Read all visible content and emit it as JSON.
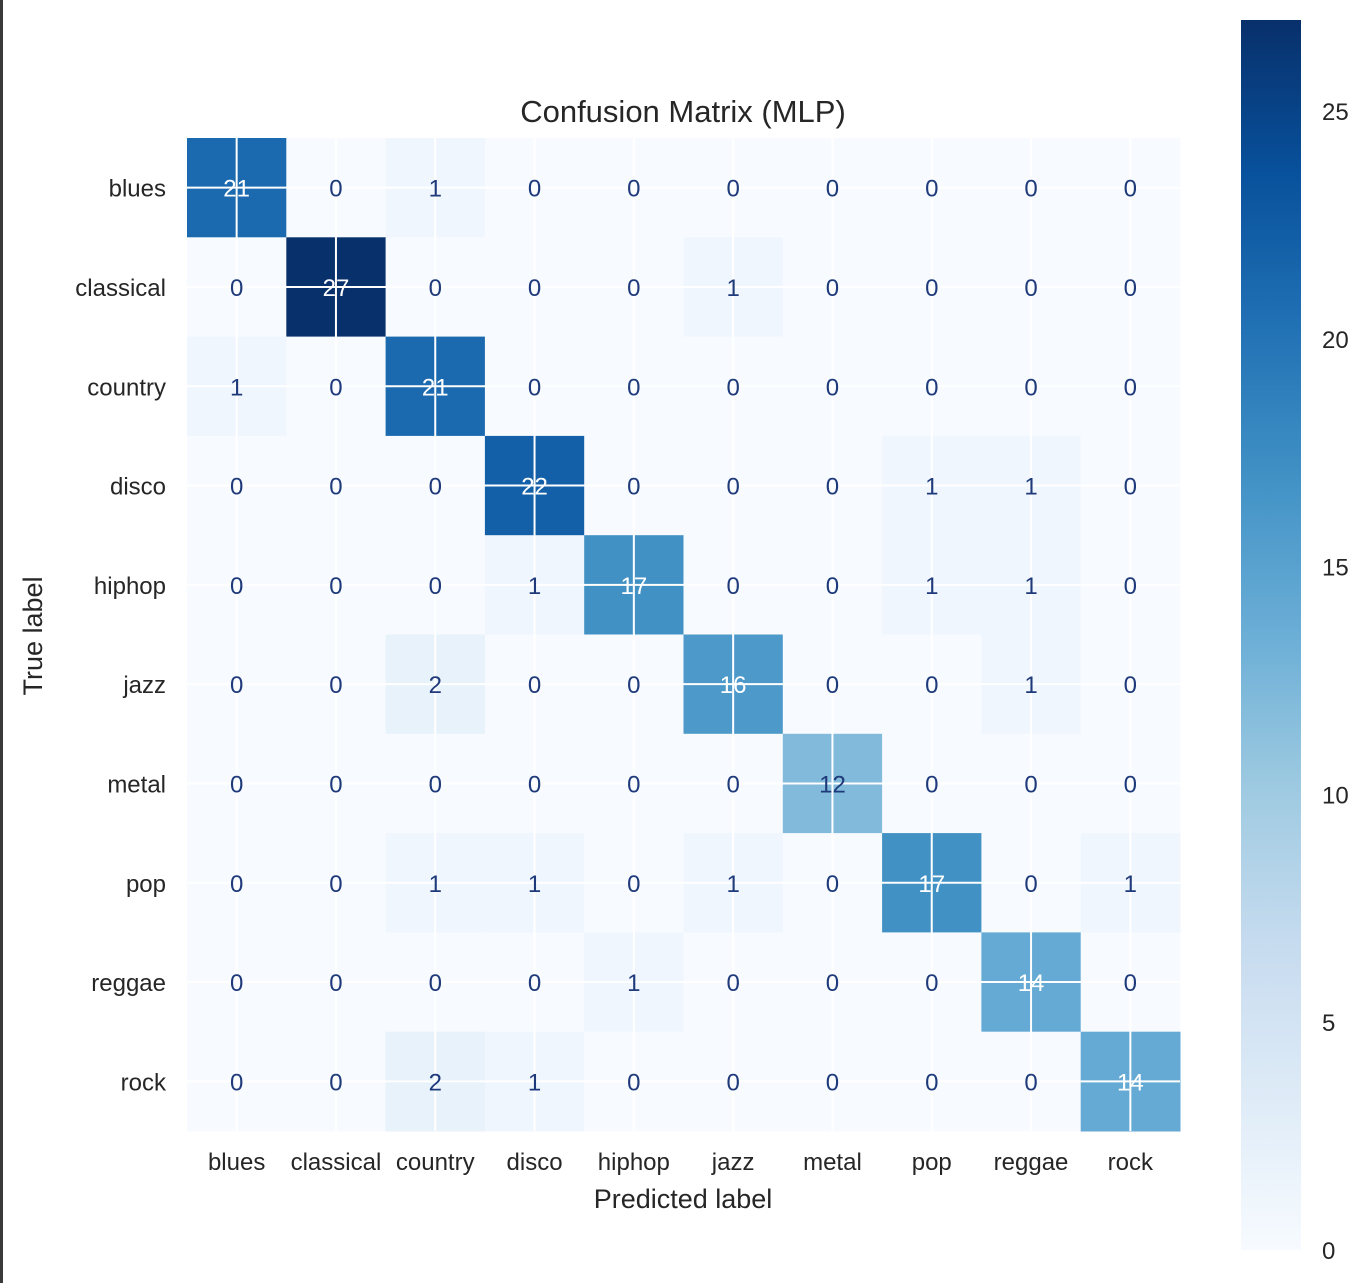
{
  "chart_data": {
    "type": "heatmap",
    "title": "Confusion Matrix (MLP)",
    "xlabel": "Predicted label",
    "ylabel": "True label",
    "x_categories": [
      "blues",
      "classical",
      "country",
      "disco",
      "hiphop",
      "jazz",
      "metal",
      "pop",
      "reggae",
      "rock"
    ],
    "y_categories": [
      "blues",
      "classical",
      "country",
      "disco",
      "hiphop",
      "jazz",
      "metal",
      "pop",
      "reggae",
      "rock"
    ],
    "values": [
      [
        21,
        0,
        1,
        0,
        0,
        0,
        0,
        0,
        0,
        0
      ],
      [
        0,
        27,
        0,
        0,
        0,
        1,
        0,
        0,
        0,
        0
      ],
      [
        1,
        0,
        21,
        0,
        0,
        0,
        0,
        0,
        0,
        0
      ],
      [
        0,
        0,
        0,
        22,
        0,
        0,
        0,
        1,
        1,
        0
      ],
      [
        0,
        0,
        0,
        1,
        17,
        0,
        0,
        1,
        1,
        0
      ],
      [
        0,
        0,
        2,
        0,
        0,
        16,
        0,
        0,
        1,
        0
      ],
      [
        0,
        0,
        0,
        0,
        0,
        0,
        12,
        0,
        0,
        0
      ],
      [
        0,
        0,
        1,
        1,
        0,
        1,
        0,
        17,
        0,
        1
      ],
      [
        0,
        0,
        0,
        0,
        1,
        0,
        0,
        0,
        14,
        0
      ],
      [
        0,
        0,
        2,
        1,
        0,
        0,
        0,
        0,
        0,
        14
      ]
    ],
    "colormap": "Blues",
    "colorbar": {
      "range": [
        0,
        27
      ],
      "ticks": [
        0,
        5,
        10,
        15,
        20,
        25
      ]
    },
    "grid": true,
    "text_color_light": "#ffffff",
    "text_color_dark": "#1f3a7a"
  }
}
